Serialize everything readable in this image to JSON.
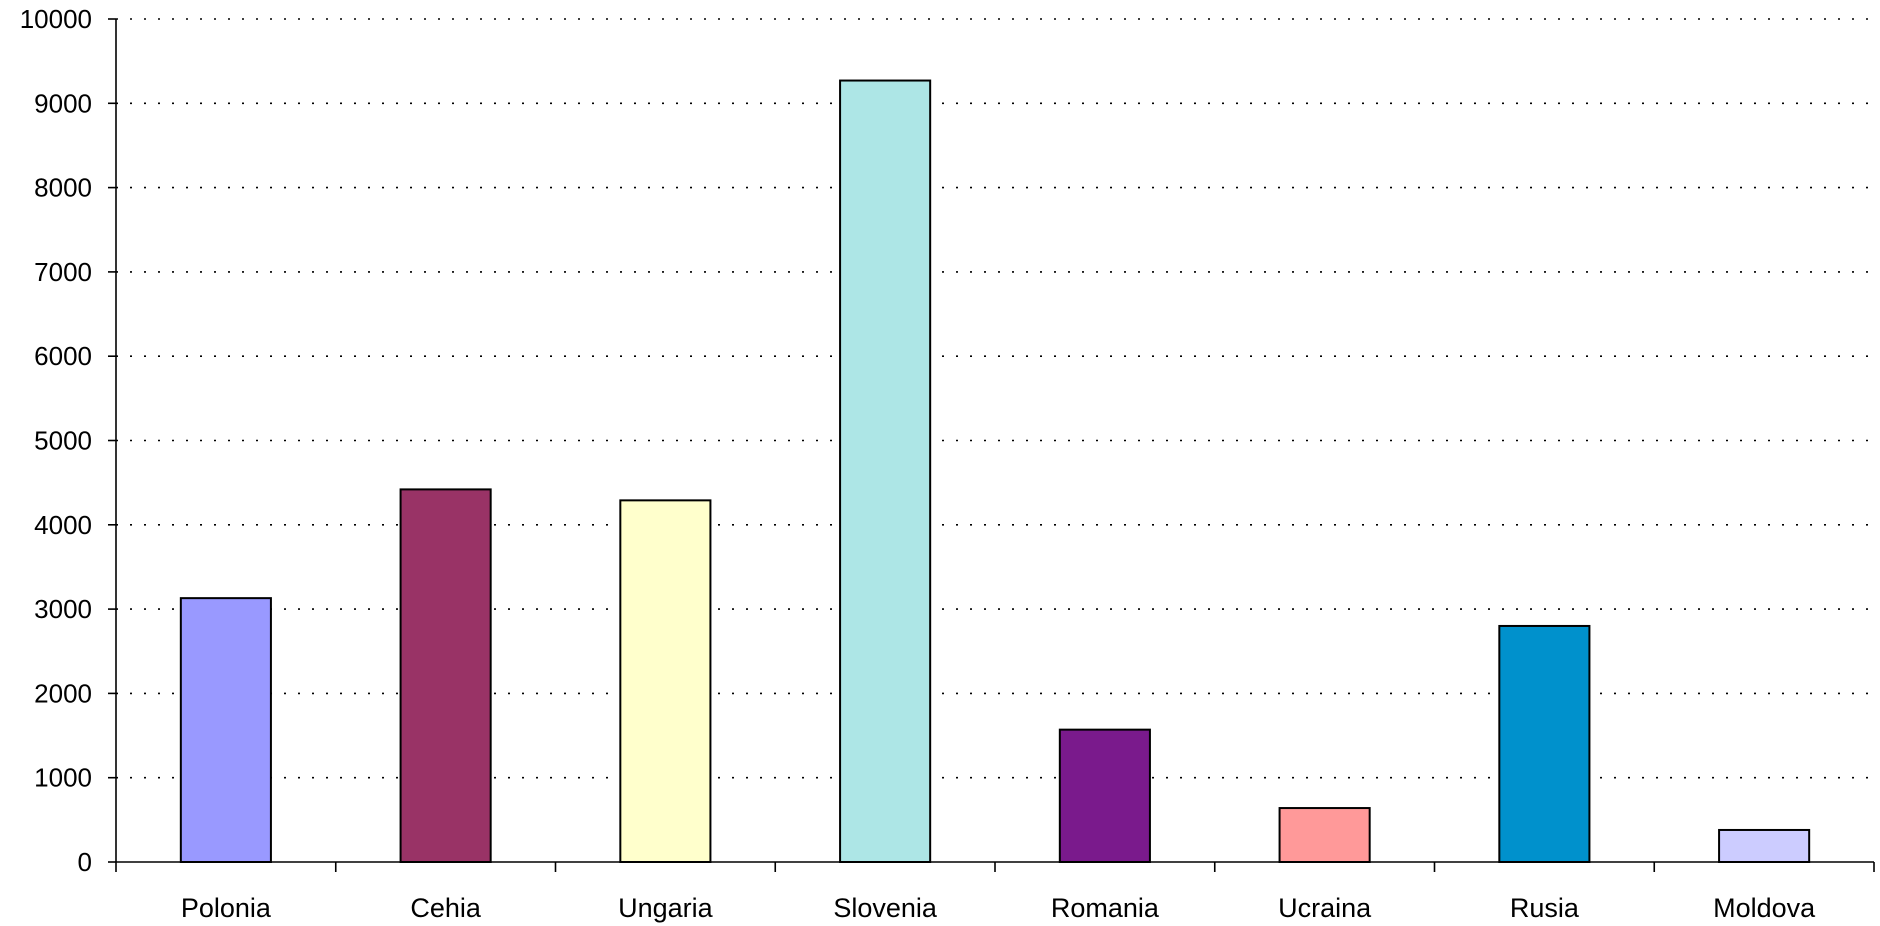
{
  "chart_data": {
    "type": "bar",
    "title": "",
    "xlabel": "",
    "ylabel": "",
    "ylim": [
      0,
      10000
    ],
    "yticks": [
      0,
      1000,
      2000,
      3000,
      4000,
      5000,
      6000,
      7000,
      8000,
      9000,
      10000
    ],
    "grid": true,
    "legend": "none",
    "categories": [
      "Polonia",
      "Cehia",
      "Ungaria",
      "Slovenia",
      "Romania",
      "Ucraina",
      "Rusia",
      "Moldova"
    ],
    "values": [
      3130,
      4420,
      4290,
      9270,
      1570,
      640,
      2800,
      380
    ],
    "colors": [
      "#9999ff",
      "#993366",
      "#ffffcc",
      "#ade6e6",
      "#7a1a8c",
      "#ff9999",
      "#0091cc",
      "#ccccff"
    ]
  }
}
